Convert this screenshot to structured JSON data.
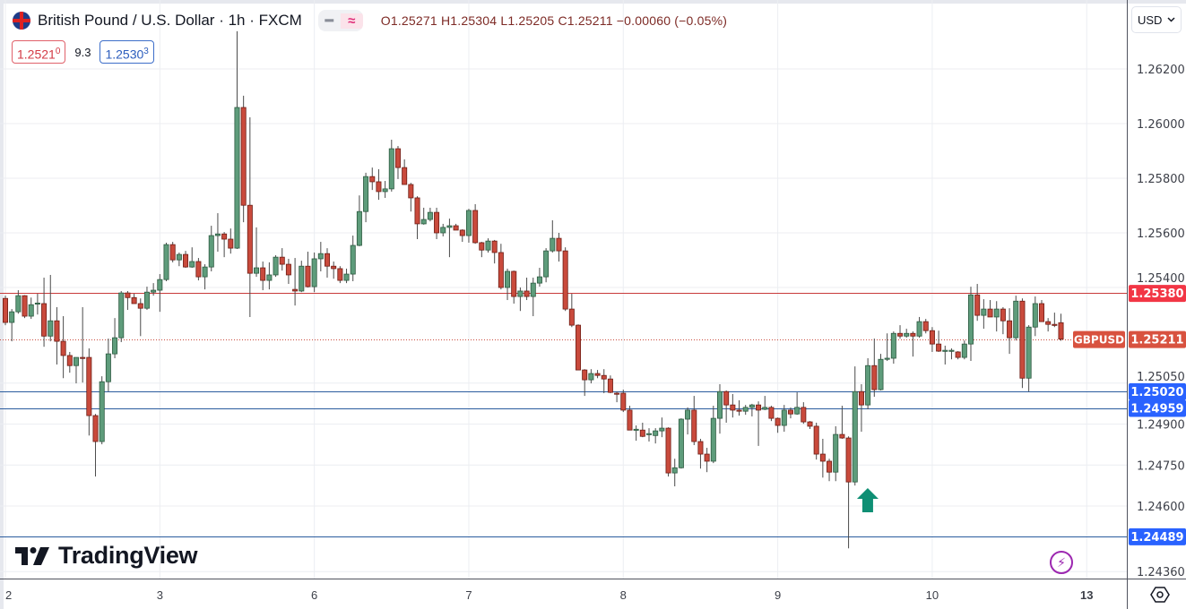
{
  "header": {
    "title": "British Pound / U.S. Dollar · 1h · FXCM",
    "flag_icon": "uk-us-flag-icon",
    "pill_dash": "━",
    "pill_wave": "≈",
    "ohlc": "O1.25271 H1.25304 L1.25205 C1.25211 −0.00060 (−0.05%)"
  },
  "quote": {
    "sell_main": "1.2521",
    "sell_sup": "0",
    "spread": "9.3",
    "buy_main": "1.2530",
    "buy_sup": "3"
  },
  "currency_select": {
    "value": "USD",
    "icon": "chevron-down-icon"
  },
  "logo": "TradingView",
  "colors": {
    "up": "#5e9c7b",
    "down": "#c94a3c",
    "resistance": "#e0434f",
    "support": "#2f6fe0",
    "arrow": "#0f8f74",
    "bolt": "#9c27b0"
  },
  "chart_data": {
    "type": "candlestick",
    "symbol": "GBPUSD",
    "interval": "1h",
    "last_price": 1.25211,
    "last_price_label": "1.25211",
    "symbol_label": "GBPUSD",
    "ylim": [
      1.2433,
      1.2641
    ],
    "grid": true,
    "y_ticks": [
      "1.26200",
      "1.26000",
      "1.25800",
      "1.25600",
      "1.25400",
      "1.25050",
      "1.24900",
      "1.24750",
      "1.24600",
      "1.24360"
    ],
    "x_ticks": [
      {
        "label": "2",
        "bar": 0
      },
      {
        "label": "3",
        "bar": 24
      },
      {
        "label": "6",
        "bar": 48
      },
      {
        "label": "7",
        "bar": 72
      },
      {
        "label": "8",
        "bar": 96
      },
      {
        "label": "9",
        "bar": 120
      },
      {
        "label": "10",
        "bar": 144
      },
      {
        "label": "13",
        "bar": 168
      }
    ],
    "horizontal_lines": [
      {
        "price": 1.2538,
        "label": "1.25380",
        "kind": "resistance"
      },
      {
        "price": 1.2502,
        "label": "1.25020",
        "kind": "support"
      },
      {
        "price": 1.24959,
        "label": "1.24959",
        "kind": "support"
      },
      {
        "price": 1.24489,
        "label": "1.24489",
        "kind": "support"
      }
    ],
    "annotations": [
      {
        "type": "up-arrow",
        "bar": 133,
        "price": 1.2461
      }
    ],
    "candles_ohlc": [
      [
        1.2536,
        1.2537,
        1.25262,
        1.25272
      ],
      [
        1.25272,
        1.25321,
        1.25203,
        1.25311
      ],
      [
        1.25311,
        1.2539,
        1.25304,
        1.2537
      ],
      [
        1.2537,
        1.25372,
        1.25288,
        1.25295
      ],
      [
        1.25295,
        1.25363,
        1.25285,
        1.25337
      ],
      [
        1.25341,
        1.25377,
        1.25301,
        1.25343
      ],
      [
        1.25341,
        1.25436,
        1.25183,
        1.25222
      ],
      [
        1.25222,
        1.25446,
        1.25203,
        1.25278
      ],
      [
        1.25278,
        1.25328,
        1.25118,
        1.25203
      ],
      [
        1.25203,
        1.25295,
        1.25068,
        1.25151
      ],
      [
        1.25151,
        1.25164,
        1.25088,
        1.25114
      ],
      [
        1.25114,
        1.25144,
        1.25049,
        1.25144
      ],
      [
        1.25144,
        1.25328,
        1.25052,
        1.25141
      ],
      [
        1.25144,
        1.25177,
        1.24858,
        1.24931
      ],
      [
        1.24931,
        1.24937,
        1.24708,
        1.24836
      ],
      [
        1.24836,
        1.25075,
        1.24826,
        1.25055
      ],
      [
        1.25055,
        1.25213,
        1.25019,
        1.25157
      ],
      [
        1.25157,
        1.25288,
        1.25141,
        1.25216
      ],
      [
        1.25216,
        1.25387,
        1.252,
        1.2538
      ],
      [
        1.2538,
        1.25387,
        1.25318,
        1.25363
      ],
      [
        1.25363,
        1.25377,
        1.25341,
        1.25341
      ],
      [
        1.25341,
        1.2536,
        1.25222,
        1.25324
      ],
      [
        1.25324,
        1.25403,
        1.25318,
        1.25383
      ],
      [
        1.25383,
        1.25416,
        1.2537,
        1.2539
      ],
      [
        1.2539,
        1.25449,
        1.25311,
        1.25429
      ],
      [
        1.25429,
        1.25564,
        1.25423,
        1.25557
      ],
      [
        1.25557,
        1.25567,
        1.25492,
        1.25501
      ],
      [
        1.25501,
        1.25528,
        1.25478,
        1.25521
      ],
      [
        1.25521,
        1.25534,
        1.25472,
        1.25475
      ],
      [
        1.25475,
        1.25547,
        1.25472,
        1.25495
      ],
      [
        1.25495,
        1.25508,
        1.25426,
        1.25439
      ],
      [
        1.25439,
        1.25485,
        1.25393,
        1.25475
      ],
      [
        1.25475,
        1.25626,
        1.25459,
        1.2559
      ],
      [
        1.2559,
        1.25672,
        1.25531,
        1.25596
      ],
      [
        1.25596,
        1.25603,
        1.25511,
        1.25577
      ],
      [
        1.25577,
        1.25616,
        1.25524,
        1.25544
      ],
      [
        1.25544,
        1.26338,
        1.25541,
        1.26059
      ],
      [
        1.26059,
        1.26102,
        1.25639,
        1.25701
      ],
      [
        1.25701,
        1.26023,
        1.25292,
        1.25452
      ],
      [
        1.25452,
        1.2562,
        1.25439,
        1.25472
      ],
      [
        1.25472,
        1.25495,
        1.2539,
        1.25426
      ],
      [
        1.25426,
        1.25492,
        1.25393,
        1.25446
      ],
      [
        1.25446,
        1.25518,
        1.25439,
        1.25511
      ],
      [
        1.25511,
        1.25544,
        1.25462,
        1.25485
      ],
      [
        1.25485,
        1.25505,
        1.25413,
        1.25446
      ],
      [
        1.25393,
        1.25508,
        1.25334,
        1.25387
      ],
      [
        1.25387,
        1.25498,
        1.25383,
        1.25478
      ],
      [
        1.25478,
        1.25531,
        1.254,
        1.25403
      ],
      [
        1.25403,
        1.25528,
        1.25383,
        1.25505
      ],
      [
        1.25505,
        1.25567,
        1.25459,
        1.25524
      ],
      [
        1.25524,
        1.25544,
        1.25436,
        1.25478
      ],
      [
        1.25478,
        1.25495,
        1.25432,
        1.25469
      ],
      [
        1.25469,
        1.25478,
        1.25416,
        1.25426
      ],
      [
        1.25426,
        1.25469,
        1.25416,
        1.25449
      ],
      [
        1.25449,
        1.2559,
        1.25423,
        1.25554
      ],
      [
        1.25554,
        1.25737,
        1.25551,
        1.25678
      ],
      [
        1.25678,
        1.2582,
        1.25639,
        1.25806
      ],
      [
        1.25806,
        1.25839,
        1.25757,
        1.25787
      ],
      [
        1.25787,
        1.25833,
        1.25721,
        1.25751
      ],
      [
        1.25751,
        1.2579,
        1.25728,
        1.25761
      ],
      [
        1.25761,
        1.25941,
        1.25751,
        1.25908
      ],
      [
        1.25908,
        1.25918,
        1.25797,
        1.25839
      ],
      [
        1.25839,
        1.25869,
        1.25777,
        1.25777
      ],
      [
        1.25777,
        1.25783,
        1.25678,
        1.25728
      ],
      [
        1.25728,
        1.25734,
        1.25577,
        1.25633
      ],
      [
        1.25633,
        1.25692,
        1.2563,
        1.25649
      ],
      [
        1.25649,
        1.25692,
        1.25642,
        1.25675
      ],
      [
        1.25675,
        1.25692,
        1.25577,
        1.256
      ],
      [
        1.256,
        1.25633,
        1.25587,
        1.2562
      ],
      [
        1.2562,
        1.25652,
        1.25511,
        1.25626
      ],
      [
        1.25626,
        1.25633,
        1.2561,
        1.2561
      ],
      [
        1.2561,
        1.25613,
        1.25567,
        1.2559
      ],
      [
        1.2559,
        1.25688,
        1.25564,
        1.25682
      ],
      [
        1.25682,
        1.25705,
        1.2556,
        1.25564
      ],
      [
        1.25564,
        1.25567,
        1.25511,
        1.25537
      ],
      [
        1.25537,
        1.2558,
        1.25528,
        1.2557
      ],
      [
        1.2557,
        1.25574,
        1.25488,
        1.25528
      ],
      [
        1.25528,
        1.2556,
        1.25393,
        1.254
      ],
      [
        1.254,
        1.25469,
        1.25354,
        1.25459
      ],
      [
        1.25459,
        1.25462,
        1.25341,
        1.25367
      ],
      [
        1.25367,
        1.254,
        1.25314,
        1.25387
      ],
      [
        1.25387,
        1.25436,
        1.25354,
        1.25367
      ],
      [
        1.25367,
        1.25436,
        1.25295,
        1.25416
      ],
      [
        1.25416,
        1.25472,
        1.25403,
        1.25439
      ],
      [
        1.25439,
        1.25544,
        1.25419,
        1.25534
      ],
      [
        1.25534,
        1.25646,
        1.25528,
        1.2558
      ],
      [
        1.2558,
        1.256,
        1.25495,
        1.25534
      ],
      [
        1.25534,
        1.25547,
        1.25314,
        1.25321
      ],
      [
        1.25321,
        1.25377,
        1.25255,
        1.25262
      ],
      [
        1.25262,
        1.25265,
        1.25098,
        1.25098
      ],
      [
        1.25098,
        1.25101,
        1.25003,
        1.25062
      ],
      [
        1.25062,
        1.25101,
        1.25049,
        1.25085
      ],
      [
        1.25085,
        1.25098,
        1.25068,
        1.25078
      ],
      [
        1.25078,
        1.25101,
        1.25013,
        1.25065
      ],
      [
        1.25065,
        1.25078,
        1.25013,
        1.25016
      ],
      [
        1.25013,
        1.25019,
        1.2498,
        1.2501
      ],
      [
        1.25013,
        1.25026,
        1.24944,
        1.24951
      ],
      [
        1.24951,
        1.24967,
        1.24878,
        1.24878
      ],
      [
        1.24878,
        1.24895,
        1.24839,
        1.24881
      ],
      [
        1.24878,
        1.24905,
        1.24852,
        1.24855
      ],
      [
        1.24862,
        1.24885,
        1.24836,
        1.24865
      ],
      [
        1.24858,
        1.24885,
        1.24829,
        1.24875
      ],
      [
        1.24875,
        1.24924,
        1.24852,
        1.24885
      ],
      [
        1.24885,
        1.24888,
        1.24708,
        1.24721
      ],
      [
        1.24721,
        1.24773,
        1.24672,
        1.2474
      ],
      [
        1.2474,
        1.24921,
        1.24737,
        1.24918
      ],
      [
        1.24918,
        1.24961,
        1.24862,
        1.24951
      ],
      [
        1.24951,
        1.25003,
        1.24823,
        1.24836
      ],
      [
        1.24836,
        1.24846,
        1.24737,
        1.2479
      ],
      [
        1.2479,
        1.24813,
        1.24724,
        1.24764
      ],
      [
        1.24764,
        1.24967,
        1.24757,
        1.24921
      ],
      [
        1.24921,
        1.25046,
        1.24865,
        1.25019
      ],
      [
        1.25019,
        1.25023,
        1.24905,
        1.2497
      ],
      [
        1.2497,
        1.2501,
        1.24924,
        1.24951
      ],
      [
        1.24951,
        1.24987,
        1.24931,
        1.24947
      ],
      [
        1.24947,
        1.2497,
        1.24934,
        1.24961
      ],
      [
        1.24961,
        1.24974,
        1.24928,
        1.2497
      ],
      [
        1.2497,
        1.24983,
        1.2482,
        1.24951
      ],
      [
        1.24954,
        1.25003,
        1.24951,
        1.24961
      ],
      [
        1.24961,
        1.24967,
        1.24911,
        1.24921
      ],
      [
        1.24921,
        1.24924,
        1.24868,
        1.24895
      ],
      [
        1.24895,
        1.2497,
        1.24872,
        1.24951
      ],
      [
        1.24951,
        1.24961,
        1.24921,
        1.24937
      ],
      [
        1.24937,
        1.25016,
        1.24934,
        1.24961
      ],
      [
        1.24961,
        1.2498,
        1.24901,
        1.24908
      ],
      [
        1.24908,
        1.24911,
        1.24882,
        1.24892
      ],
      [
        1.24892,
        1.24905,
        1.2477,
        1.2479
      ],
      [
        1.2479,
        1.24846,
        1.24704,
        1.24764
      ],
      [
        1.24764,
        1.24773,
        1.24691,
        1.24724
      ],
      [
        1.24724,
        1.24892,
        1.24691,
        1.24862
      ],
      [
        1.24862,
        1.24967,
        1.24846,
        1.24849
      ],
      [
        1.24849,
        1.24855,
        1.24445,
        1.24688
      ],
      [
        1.24688,
        1.25111,
        1.24675,
        1.25019
      ],
      [
        1.25019,
        1.25046,
        1.24872,
        1.2497
      ],
      [
        1.2497,
        1.25141,
        1.24954,
        1.25114
      ],
      [
        1.25114,
        1.25213,
        1.25,
        1.25026
      ],
      [
        1.25026,
        1.25157,
        1.25023,
        1.25137
      ],
      [
        1.25137,
        1.25232,
        1.25131,
        1.25141
      ],
      [
        1.25141,
        1.25239,
        1.25121,
        1.25232
      ],
      [
        1.25232,
        1.25262,
        1.25213,
        1.25222
      ],
      [
        1.25222,
        1.25249,
        1.25216,
        1.25232
      ],
      [
        1.25232,
        1.25239,
        1.25147,
        1.25222
      ],
      [
        1.25222,
        1.25292,
        1.25216,
        1.25275
      ],
      [
        1.25275,
        1.25285,
        1.25232,
        1.25242
      ],
      [
        1.25242,
        1.25255,
        1.25164,
        1.25193
      ],
      [
        1.25193,
        1.25242,
        1.25164,
        1.25167
      ],
      [
        1.25167,
        1.25187,
        1.25118,
        1.2517
      ],
      [
        1.25167,
        1.25177,
        1.25137,
        1.2517
      ],
      [
        1.25164,
        1.25167,
        1.25137,
        1.25144
      ],
      [
        1.25144,
        1.25206,
        1.25137,
        1.25193
      ],
      [
        1.25193,
        1.25403,
        1.25131,
        1.25373
      ],
      [
        1.25373,
        1.25413,
        1.25278,
        1.25298
      ],
      [
        1.25298,
        1.25357,
        1.25249,
        1.25321
      ],
      [
        1.25321,
        1.25354,
        1.25292,
        1.25292
      ],
      [
        1.25292,
        1.2535,
        1.25239,
        1.25321
      ],
      [
        1.25321,
        1.25328,
        1.25229,
        1.25278
      ],
      [
        1.25278,
        1.25324,
        1.25157,
        1.25216
      ],
      [
        1.25216,
        1.2537,
        1.25206,
        1.2535
      ],
      [
        1.2535,
        1.2536,
        1.25032,
        1.25068
      ],
      [
        1.25068,
        1.25262,
        1.25019,
        1.25255
      ],
      [
        1.25255,
        1.25367,
        1.25222,
        1.25341
      ],
      [
        1.25341,
        1.25354,
        1.25275,
        1.25275
      ],
      [
        1.25275,
        1.25288,
        1.25239,
        1.25265
      ],
      [
        1.25265,
        1.25308,
        1.25255,
        1.25262
      ],
      [
        1.25271,
        1.25304,
        1.25205,
        1.25211
      ]
    ]
  }
}
